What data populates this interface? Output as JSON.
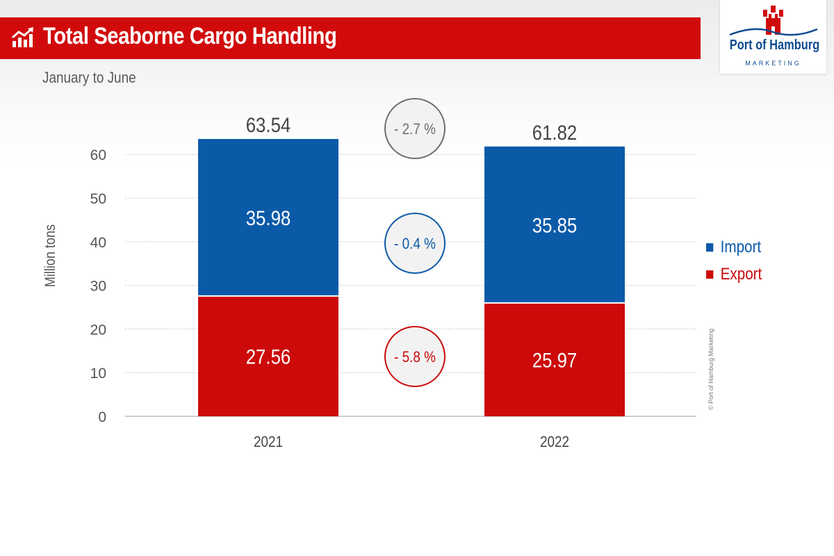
{
  "header": {
    "title": "Total Seaborne Cargo Handling",
    "subtitle": "January to June"
  },
  "logo": {
    "name": "Port of Hamburg",
    "sub": "MARKETING"
  },
  "copyright": "© Port of Hamburg Marketing",
  "colors": {
    "import": "#0b5aa8",
    "export": "#cc0a0a",
    "brand_red": "#d10b0b",
    "total_circle": "#6e6e6e"
  },
  "chart_data": {
    "type": "bar",
    "stacked": true,
    "categories": [
      "2021",
      "2022"
    ],
    "series": [
      {
        "name": "Export",
        "values": [
          27.56,
          25.97
        ],
        "labels": [
          "27.56",
          "25.97"
        ]
      },
      {
        "name": "Import",
        "values": [
          35.98,
          35.85
        ],
        "labels": [
          "35.98",
          "35.85"
        ]
      }
    ],
    "totals": [
      63.54,
      61.82
    ],
    "total_labels": [
      "63.54",
      "61.82"
    ],
    "changes": [
      {
        "series": "Total",
        "label": "- 2.7 %"
      },
      {
        "series": "Import",
        "label": "- 0.4 %"
      },
      {
        "series": "Export",
        "label": "- 5.8 %"
      }
    ],
    "ylabel": "Million tons",
    "ylim": [
      0,
      63.54
    ],
    "yticks": [
      0,
      10,
      20,
      30,
      40,
      50,
      60
    ],
    "grid": true,
    "legend_position": "right"
  }
}
